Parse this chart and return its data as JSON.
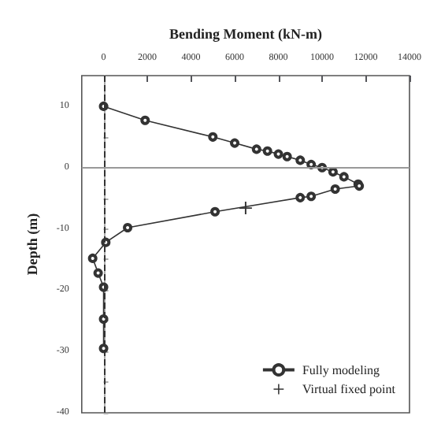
{
  "chart_data": {
    "type": "line",
    "xlabel": "Bending Moment (kN-m)",
    "ylabel": "Depth (m)",
    "xlim": [
      -1000,
      14000
    ],
    "xticks": [
      0,
      2000,
      4000,
      6000,
      8000,
      10000,
      12000,
      14000
    ],
    "ylim": [
      -40,
      15
    ],
    "yticks": [
      10,
      {
        "value": 5,
        "label": null
      },
      0,
      {
        "value": -5,
        "label": null
      },
      -10,
      {
        "value": -15,
        "label": null
      },
      -20,
      {
        "value": -25,
        "label": null
      },
      -30,
      {
        "value": -35,
        "label": null
      },
      -40
    ],
    "series": [
      {
        "name": "Fully modeling",
        "color": "#333333",
        "marker": "circle",
        "line_style": "solid",
        "x": [
          0,
          1900,
          5000,
          6000,
          7000,
          7500,
          8000,
          8400,
          9000,
          9500,
          10000,
          10500,
          11000,
          11650,
          11700,
          10600,
          9500,
          9000,
          5100,
          1100,
          100,
          -500,
          -250,
          0,
          0,
          0
        ],
        "values": [
          10,
          7.7,
          5,
          4,
          3,
          2.7,
          2.2,
          1.8,
          1.2,
          0.5,
          0,
          -0.7,
          -1.5,
          -2.7,
          -3,
          -3.5,
          -4.7,
          -4.9,
          -7.2,
          -9.8,
          -12.2,
          -14.8,
          -17.2,
          -19.5,
          -24.7,
          -29.5
        ]
      },
      {
        "name": "Virtual fixed point",
        "color": "#333333",
        "marker": "cross",
        "x": [
          6500
        ],
        "values": [
          -6.6
        ]
      }
    ],
    "ref_lines": [
      {
        "axis": "x",
        "value": 0,
        "line_style": "dashed",
        "color": "#333333"
      },
      {
        "axis": "y",
        "value": 0,
        "line_style": "solid",
        "color": "#999999"
      }
    ],
    "grid": false,
    "legend": "bottom right"
  }
}
